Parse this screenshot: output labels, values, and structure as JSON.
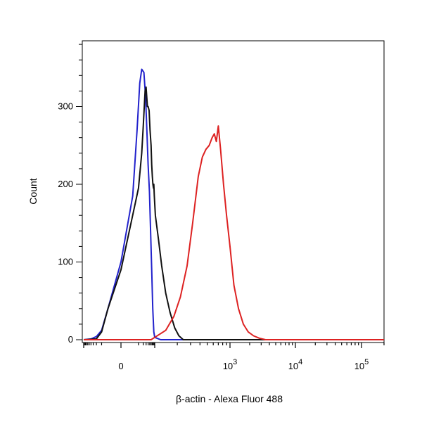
{
  "chart_data": {
    "type": "line",
    "title": "",
    "xlabel": "β-actin - Alexa Fluor 488",
    "ylabel": "Count",
    "x_scale": "biexponential",
    "xlim": [
      -100,
      200000
    ],
    "ylim": [
      0,
      390
    ],
    "grid": false,
    "legend": "none",
    "y_ticks": [
      {
        "value": 0,
        "label": "0"
      },
      {
        "value": 100,
        "label": "100"
      },
      {
        "value": 200,
        "label": "200"
      },
      {
        "value": 300,
        "label": "300"
      }
    ],
    "x_ticks": [
      {
        "value": 0,
        "label": "0",
        "exp": ""
      },
      {
        "value": 1000,
        "label": "10",
        "exp": "3"
      },
      {
        "value": 10000,
        "label": "10",
        "exp": "4"
      },
      {
        "value": 100000,
        "label": "10",
        "exp": "5"
      }
    ],
    "series": [
      {
        "color": "#2222cc",
        "points": [
          [
            -100,
            0
          ],
          [
            -40,
            1
          ],
          [
            -20,
            4
          ],
          [
            -10,
            12
          ],
          [
            -4,
            40
          ],
          [
            0,
            100
          ],
          [
            4,
            185
          ],
          [
            8,
            270
          ],
          [
            12,
            330
          ],
          [
            16,
            348
          ],
          [
            22,
            344
          ],
          [
            28,
            312
          ],
          [
            34,
            265
          ],
          [
            40,
            225
          ],
          [
            48,
            190
          ],
          [
            56,
            140
          ],
          [
            66,
            90
          ],
          [
            76,
            40
          ],
          [
            88,
            10
          ],
          [
            100,
            3
          ],
          [
            120,
            0
          ],
          [
            200000,
            0
          ]
        ]
      },
      {
        "color": "#111111",
        "points": [
          [
            -100,
            0
          ],
          [
            -20,
            1
          ],
          [
            -10,
            10
          ],
          [
            -4,
            40
          ],
          [
            0,
            90
          ],
          [
            6,
            175
          ],
          [
            10,
            195
          ],
          [
            16,
            240
          ],
          [
            20,
            275
          ],
          [
            26,
            320
          ],
          [
            30,
            325
          ],
          [
            36,
            300
          ],
          [
            40,
            300
          ],
          [
            46,
            295
          ],
          [
            52,
            270
          ],
          [
            60,
            250
          ],
          [
            66,
            225
          ],
          [
            72,
            210
          ],
          [
            78,
            200
          ],
          [
            84,
            195
          ],
          [
            88,
            200
          ],
          [
            94,
            185
          ],
          [
            102,
            160
          ],
          [
            112,
            130
          ],
          [
            124,
            95
          ],
          [
            140,
            60
          ],
          [
            160,
            35
          ],
          [
            185,
            15
          ],
          [
            210,
            5
          ],
          [
            240,
            0
          ],
          [
            200000,
            0
          ]
        ]
      },
      {
        "color": "#dd2222",
        "points": [
          [
            -100,
            0
          ],
          [
            60,
            0
          ],
          [
            100,
            3
          ],
          [
            140,
            12
          ],
          [
            180,
            30
          ],
          [
            220,
            55
          ],
          [
            270,
            95
          ],
          [
            320,
            150
          ],
          [
            380,
            210
          ],
          [
            430,
            235
          ],
          [
            480,
            245
          ],
          [
            530,
            250
          ],
          [
            580,
            260
          ],
          [
            620,
            265
          ],
          [
            660,
            255
          ],
          [
            700,
            275
          ],
          [
            750,
            245
          ],
          [
            820,
            200
          ],
          [
            900,
            160
          ],
          [
            1000,
            120
          ],
          [
            1150,
            70
          ],
          [
            1350,
            40
          ],
          [
            1600,
            20
          ],
          [
            1900,
            10
          ],
          [
            2300,
            5
          ],
          [
            2800,
            2
          ],
          [
            3500,
            0
          ],
          [
            200000,
            0
          ]
        ]
      }
    ]
  }
}
